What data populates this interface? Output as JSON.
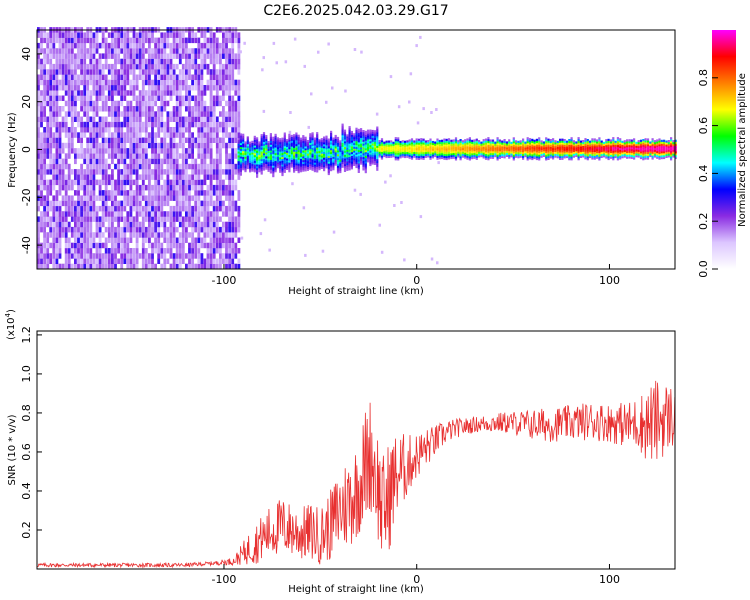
{
  "title": "C2E6.2025.042.03.29.G17",
  "chart_data": [
    {
      "type": "heatmap",
      "xlabel": "Height of straight line (km)",
      "ylabel": "Frequency (Hz)",
      "xlim": [
        -197,
        134
      ],
      "ylim": [
        -50,
        50
      ],
      "xticks": [
        -100,
        0,
        100
      ],
      "yticks": [
        -40,
        -20,
        0,
        20,
        40
      ],
      "colorbar": {
        "label": "Normalized spectral amplitude",
        "range": [
          0,
          1
        ],
        "ticks": [
          "0.0",
          "0.2",
          "0.4",
          "0.6",
          "0.8"
        ],
        "colors": [
          "#ffffff",
          "#dcc6ff",
          "#8a2be2",
          "#0000ff",
          "#00ffff",
          "#00ff00",
          "#ffff00",
          "#ff7f00",
          "#ff0000",
          "#ff00ff"
        ]
      },
      "features": [
        {
          "region": "noise",
          "x_range": [
            -197,
            -93
          ],
          "freq_range": [
            -50,
            50
          ],
          "typical_amplitude": 0.15
        },
        {
          "region": "signal",
          "x_range": [
            -93,
            134
          ],
          "center_freq": 0,
          "bandwidth": 8,
          "peak_amplitude": 0.95
        }
      ]
    },
    {
      "type": "line",
      "xlabel": "Height of straight line (km)",
      "ylabel": "SNR (10 * v/v)",
      "yscale_label": "(x10",
      "yscale_exp": "4",
      "xlim": [
        -197,
        134
      ],
      "ylim": [
        0,
        1.22
      ],
      "xticks": [
        -100,
        0,
        100
      ],
      "yticks": [
        0.2,
        0.4,
        0.6,
        0.8,
        1.0,
        1.2
      ],
      "series": [
        {
          "color": "#e83030",
          "x": [
            -197,
            -150,
            -120,
            -105,
            -95,
            -90,
            -85,
            -80,
            -75,
            -70,
            -65,
            -60,
            -55,
            -50,
            -45,
            -40,
            -35,
            -30,
            -27,
            -24,
            -21,
            -18,
            -15,
            -12,
            -9,
            -6,
            -3,
            0,
            5,
            10,
            15,
            20,
            30,
            40,
            50,
            60,
            70,
            80,
            90,
            100,
            110,
            115,
            120,
            125,
            130,
            134
          ],
          "y": [
            0.02,
            0.02,
            0.02,
            0.03,
            0.04,
            0.08,
            0.12,
            0.16,
            0.2,
            0.22,
            0.2,
            0.18,
            0.19,
            0.17,
            0.22,
            0.3,
            0.35,
            0.42,
            0.52,
            0.6,
            0.48,
            0.3,
            0.35,
            0.45,
            0.5,
            0.52,
            0.55,
            0.58,
            0.62,
            0.66,
            0.7,
            0.72,
            0.74,
            0.75,
            0.75,
            0.74,
            0.74,
            0.75,
            0.76,
            0.75,
            0.74,
            0.75,
            0.74,
            0.76,
            0.78,
            0.78
          ],
          "noise": [
            0.01,
            0.01,
            0.01,
            0.01,
            0.02,
            0.06,
            0.1,
            0.12,
            0.14,
            0.15,
            0.14,
            0.14,
            0.15,
            0.15,
            0.18,
            0.22,
            0.25,
            0.25,
            0.3,
            0.3,
            0.3,
            0.28,
            0.3,
            0.25,
            0.2,
            0.18,
            0.14,
            0.12,
            0.1,
            0.08,
            0.06,
            0.05,
            0.04,
            0.05,
            0.06,
            0.08,
            0.09,
            0.09,
            0.1,
            0.1,
            0.12,
            0.14,
            0.2,
            0.22,
            0.18,
            0.16
          ]
        }
      ]
    }
  ]
}
